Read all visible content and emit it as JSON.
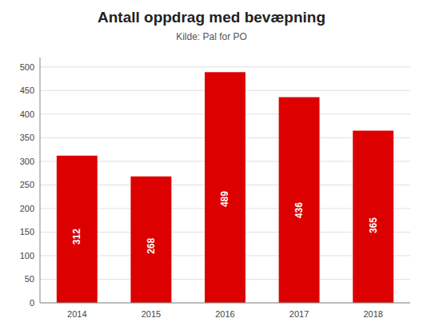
{
  "chart_data": {
    "type": "bar",
    "title": "Antall oppdrag med bevæpning",
    "subtitle": "Kilde: Pal for PO",
    "categories": [
      "2014",
      "2015",
      "2016",
      "2017",
      "2018"
    ],
    "values": [
      312,
      268,
      489,
      436,
      365
    ],
    "color": "#dd0000",
    "ylim": [
      0,
      520
    ],
    "yticks": [
      0,
      50,
      100,
      150,
      200,
      250,
      300,
      350,
      400,
      450,
      500
    ],
    "grid": true,
    "data_labels": true
  }
}
